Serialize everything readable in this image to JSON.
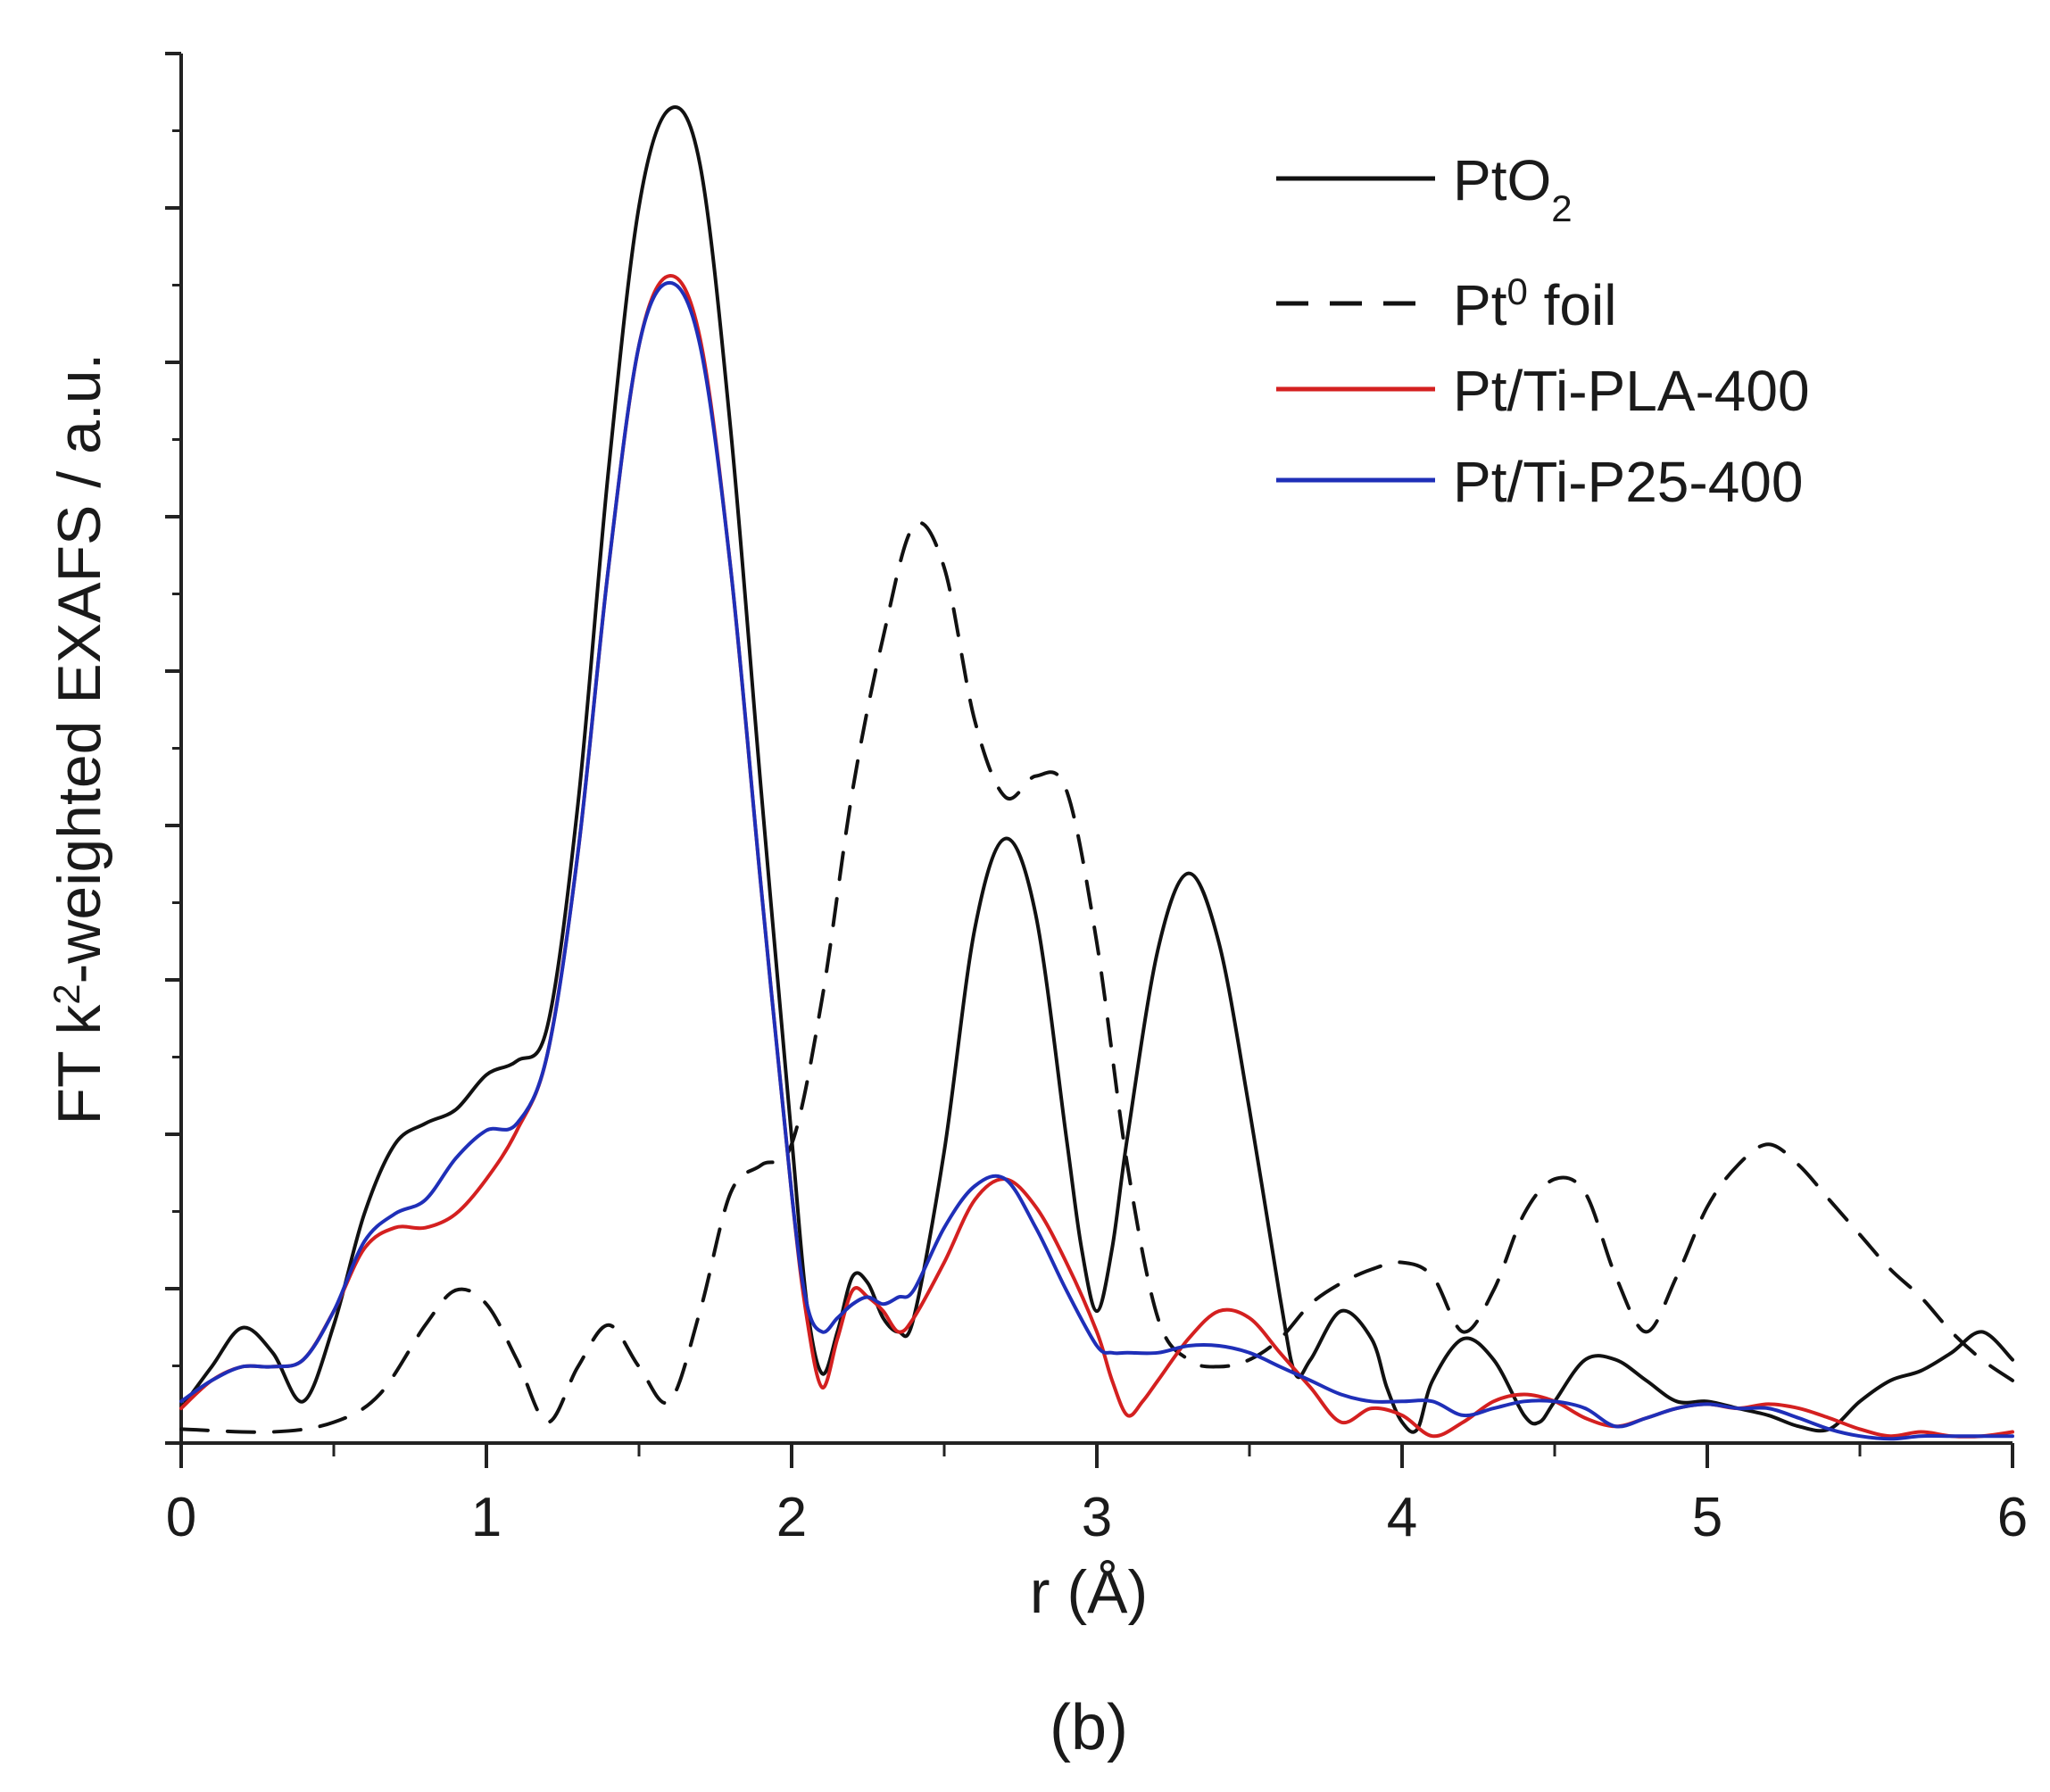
{
  "chart_data": {
    "type": "line",
    "panel_label": "(b)",
    "xlabel": "r  (Å)",
    "ylabel": {
      "prefix": "FT k",
      "sup": "2",
      "suffix": "-weighted EXAFS / a.u."
    },
    "xlim": [
      0,
      6
    ],
    "ylim": [
      0,
      100
    ],
    "xticks": [
      "0",
      "1",
      "2",
      "3",
      "4",
      "5",
      "6"
    ],
    "y_tick_labels": "none",
    "series": [
      {
        "name": "PtO2",
        "legend": {
          "base": "PtO",
          "sub": "2"
        },
        "color": "#111111",
        "dash": "solid",
        "points": [
          [
            0,
            2.5
          ],
          [
            0.1,
            5.5
          ],
          [
            0.2,
            8.3
          ],
          [
            0.3,
            6.5
          ],
          [
            0.4,
            3.0
          ],
          [
            0.5,
            8.5
          ],
          [
            0.6,
            16.5
          ],
          [
            0.7,
            21.5
          ],
          [
            0.8,
            23.0
          ],
          [
            0.9,
            24.0
          ],
          [
            1.0,
            26.5
          ],
          [
            1.1,
            27.5
          ],
          [
            1.2,
            30.0
          ],
          [
            1.3,
            46.0
          ],
          [
            1.4,
            70.0
          ],
          [
            1.5,
            89.0
          ],
          [
            1.6,
            96.0
          ],
          [
            1.7,
            92.0
          ],
          [
            1.8,
            73.0
          ],
          [
            1.9,
            47.0
          ],
          [
            2.0,
            22.0
          ],
          [
            2.05,
            10.0
          ],
          [
            2.1,
            5.0
          ],
          [
            2.15,
            8.0
          ],
          [
            2.2,
            12.0
          ],
          [
            2.25,
            11.5
          ],
          [
            2.3,
            9.0
          ],
          [
            2.35,
            8.0
          ],
          [
            2.4,
            9.0
          ],
          [
            2.5,
            21.0
          ],
          [
            2.6,
            37.0
          ],
          [
            2.7,
            43.5
          ],
          [
            2.8,
            38.0
          ],
          [
            2.9,
            22.0
          ],
          [
            2.95,
            14.0
          ],
          [
            3.0,
            9.5
          ],
          [
            3.05,
            14.0
          ],
          [
            3.1,
            22.0
          ],
          [
            3.2,
            35.5
          ],
          [
            3.3,
            41.0
          ],
          [
            3.4,
            36.0
          ],
          [
            3.5,
            24.0
          ],
          [
            3.6,
            10.5
          ],
          [
            3.65,
            5.0
          ],
          [
            3.7,
            6.0
          ],
          [
            3.8,
            9.5
          ],
          [
            3.9,
            7.5
          ],
          [
            3.95,
            4.0
          ],
          [
            4.0,
            1.5
          ],
          [
            4.05,
            1.0
          ],
          [
            4.1,
            4.5
          ],
          [
            4.2,
            7.5
          ],
          [
            4.3,
            6.0
          ],
          [
            4.4,
            2.0
          ],
          [
            4.45,
            1.5
          ],
          [
            4.5,
            3.0
          ],
          [
            4.6,
            6.0
          ],
          [
            4.7,
            6.0
          ],
          [
            4.8,
            4.5
          ],
          [
            4.9,
            3.0
          ],
          [
            5.0,
            3.0
          ],
          [
            5.1,
            2.5
          ],
          [
            5.2,
            2.0
          ],
          [
            5.3,
            1.2
          ],
          [
            5.4,
            1.0
          ],
          [
            5.5,
            3.0
          ],
          [
            5.6,
            4.5
          ],
          [
            5.7,
            5.2
          ],
          [
            5.8,
            6.5
          ],
          [
            5.9,
            8.0
          ],
          [
            6.0,
            6.0
          ]
        ]
      },
      {
        "name": "Pt0 foil",
        "legend": {
          "base": "Pt",
          "sup": "0",
          "suffix": " foil"
        },
        "color": "#111111",
        "dash": "dashed",
        "points": [
          [
            0,
            1.0
          ],
          [
            0.3,
            0.8
          ],
          [
            0.5,
            1.5
          ],
          [
            0.65,
            3.5
          ],
          [
            0.8,
            8.5
          ],
          [
            0.9,
            11.0
          ],
          [
            1.0,
            10.0
          ],
          [
            1.1,
            6.0
          ],
          [
            1.2,
            1.5
          ],
          [
            1.3,
            5.5
          ],
          [
            1.4,
            8.5
          ],
          [
            1.5,
            5.5
          ],
          [
            1.6,
            3.0
          ],
          [
            1.7,
            9.5
          ],
          [
            1.8,
            18.0
          ],
          [
            1.9,
            20.0
          ],
          [
            2.0,
            21.5
          ],
          [
            2.1,
            32.0
          ],
          [
            2.2,
            47.0
          ],
          [
            2.3,
            58.0
          ],
          [
            2.4,
            66.0
          ],
          [
            2.5,
            63.0
          ],
          [
            2.6,
            52.0
          ],
          [
            2.7,
            46.5
          ],
          [
            2.8,
            48.0
          ],
          [
            2.9,
            47.0
          ],
          [
            3.0,
            36.0
          ],
          [
            3.1,
            20.0
          ],
          [
            3.2,
            9.0
          ],
          [
            3.3,
            6.0
          ],
          [
            3.4,
            5.5
          ],
          [
            3.5,
            6.0
          ],
          [
            3.6,
            7.5
          ],
          [
            3.7,
            10.0
          ],
          [
            3.8,
            11.5
          ],
          [
            3.9,
            12.5
          ],
          [
            4.0,
            13.0
          ],
          [
            4.1,
            12.0
          ],
          [
            4.2,
            8.0
          ],
          [
            4.3,
            11.0
          ],
          [
            4.4,
            16.5
          ],
          [
            4.5,
            19.0
          ],
          [
            4.6,
            18.0
          ],
          [
            4.7,
            12.0
          ],
          [
            4.8,
            8.0
          ],
          [
            4.9,
            12.0
          ],
          [
            5.0,
            17.0
          ],
          [
            5.1,
            20.0
          ],
          [
            5.2,
            21.5
          ],
          [
            5.3,
            20.0
          ],
          [
            5.4,
            17.5
          ],
          [
            5.5,
            15.0
          ],
          [
            5.6,
            12.5
          ],
          [
            5.7,
            10.5
          ],
          [
            5.8,
            8.0
          ],
          [
            5.9,
            6.0
          ],
          [
            6.0,
            4.5
          ]
        ]
      },
      {
        "name": "Pt/Ti-PLA-400",
        "legend": {
          "base": "Pt/Ti-PLA-400"
        },
        "color": "#d42020",
        "dash": "solid",
        "points": [
          [
            0,
            2.5
          ],
          [
            0.1,
            4.5
          ],
          [
            0.2,
            5.5
          ],
          [
            0.3,
            5.5
          ],
          [
            0.4,
            6.0
          ],
          [
            0.5,
            9.5
          ],
          [
            0.6,
            14.0
          ],
          [
            0.7,
            15.5
          ],
          [
            0.8,
            15.5
          ],
          [
            0.9,
            16.5
          ],
          [
            1.0,
            19.0
          ],
          [
            1.1,
            22.5
          ],
          [
            1.2,
            28.0
          ],
          [
            1.3,
            42.5
          ],
          [
            1.4,
            63.0
          ],
          [
            1.5,
            79.0
          ],
          [
            1.6,
            84.0
          ],
          [
            1.7,
            79.5
          ],
          [
            1.8,
            63.0
          ],
          [
            1.9,
            40.0
          ],
          [
            2.0,
            18.0
          ],
          [
            2.05,
            9.0
          ],
          [
            2.1,
            4.0
          ],
          [
            2.15,
            7.5
          ],
          [
            2.2,
            11.0
          ],
          [
            2.25,
            10.5
          ],
          [
            2.3,
            9.5
          ],
          [
            2.35,
            8.0
          ],
          [
            2.4,
            9.0
          ],
          [
            2.5,
            13.0
          ],
          [
            2.6,
            17.5
          ],
          [
            2.7,
            19.0
          ],
          [
            2.8,
            17.0
          ],
          [
            2.9,
            13.0
          ],
          [
            3.0,
            8.0
          ],
          [
            3.05,
            4.5
          ],
          [
            3.1,
            2.0
          ],
          [
            3.15,
            3.0
          ],
          [
            3.2,
            4.5
          ],
          [
            3.3,
            7.5
          ],
          [
            3.4,
            9.5
          ],
          [
            3.5,
            9.0
          ],
          [
            3.6,
            6.5
          ],
          [
            3.7,
            4.0
          ],
          [
            3.8,
            1.5
          ],
          [
            3.9,
            2.5
          ],
          [
            4.0,
            2.0
          ],
          [
            4.1,
            0.5
          ],
          [
            4.2,
            1.5
          ],
          [
            4.3,
            3.0
          ],
          [
            4.4,
            3.5
          ],
          [
            4.5,
            3.0
          ],
          [
            4.6,
            1.8
          ],
          [
            4.7,
            1.2
          ],
          [
            4.8,
            1.8
          ],
          [
            4.9,
            2.5
          ],
          [
            5.0,
            2.8
          ],
          [
            5.1,
            2.5
          ],
          [
            5.2,
            2.8
          ],
          [
            5.3,
            2.5
          ],
          [
            5.4,
            1.8
          ],
          [
            5.5,
            1.0
          ],
          [
            5.6,
            0.5
          ],
          [
            5.7,
            0.8
          ],
          [
            5.8,
            0.5
          ],
          [
            5.9,
            0.5
          ],
          [
            6.0,
            0.8
          ]
        ]
      },
      {
        "name": "Pt/Ti-P25-400",
        "legend": {
          "base": "Pt/Ti-P25-400"
        },
        "color": "#1f2fb8",
        "dash": "solid",
        "points": [
          [
            0,
            3.0
          ],
          [
            0.1,
            4.5
          ],
          [
            0.2,
            5.5
          ],
          [
            0.3,
            5.5
          ],
          [
            0.4,
            6.0
          ],
          [
            0.5,
            9.5
          ],
          [
            0.6,
            14.5
          ],
          [
            0.7,
            16.5
          ],
          [
            0.8,
            17.5
          ],
          [
            0.9,
            20.5
          ],
          [
            1.0,
            22.5
          ],
          [
            1.1,
            23.0
          ],
          [
            1.2,
            28.0
          ],
          [
            1.3,
            42.5
          ],
          [
            1.4,
            63.0
          ],
          [
            1.5,
            79.0
          ],
          [
            1.6,
            83.5
          ],
          [
            1.7,
            79.0
          ],
          [
            1.8,
            63.0
          ],
          [
            1.9,
            40.0
          ],
          [
            2.0,
            18.0
          ],
          [
            2.05,
            10.0
          ],
          [
            2.1,
            8.0
          ],
          [
            2.15,
            9.0
          ],
          [
            2.2,
            10.0
          ],
          [
            2.25,
            10.5
          ],
          [
            2.3,
            10.0
          ],
          [
            2.35,
            10.5
          ],
          [
            2.4,
            11.0
          ],
          [
            2.5,
            15.5
          ],
          [
            2.6,
            18.5
          ],
          [
            2.7,
            19.0
          ],
          [
            2.8,
            15.5
          ],
          [
            2.9,
            11.0
          ],
          [
            3.0,
            7.0
          ],
          [
            3.05,
            6.5
          ],
          [
            3.1,
            6.5
          ],
          [
            3.2,
            6.5
          ],
          [
            3.3,
            7.0
          ],
          [
            3.4,
            7.0
          ],
          [
            3.5,
            6.5
          ],
          [
            3.6,
            5.5
          ],
          [
            3.7,
            4.5
          ],
          [
            3.8,
            3.5
          ],
          [
            3.9,
            3.0
          ],
          [
            4.0,
            3.0
          ],
          [
            4.1,
            3.0
          ],
          [
            4.2,
            2.0
          ],
          [
            4.3,
            2.5
          ],
          [
            4.4,
            3.0
          ],
          [
            4.5,
            3.0
          ],
          [
            4.6,
            2.5
          ],
          [
            4.7,
            1.2
          ],
          [
            4.8,
            1.8
          ],
          [
            4.9,
            2.5
          ],
          [
            5.0,
            2.8
          ],
          [
            5.1,
            2.5
          ],
          [
            5.2,
            2.5
          ],
          [
            5.3,
            1.8
          ],
          [
            5.4,
            1.0
          ],
          [
            5.5,
            0.5
          ],
          [
            5.6,
            0.3
          ],
          [
            5.7,
            0.5
          ],
          [
            5.8,
            0.5
          ],
          [
            5.9,
            0.5
          ],
          [
            6.0,
            0.5
          ]
        ]
      }
    ]
  }
}
